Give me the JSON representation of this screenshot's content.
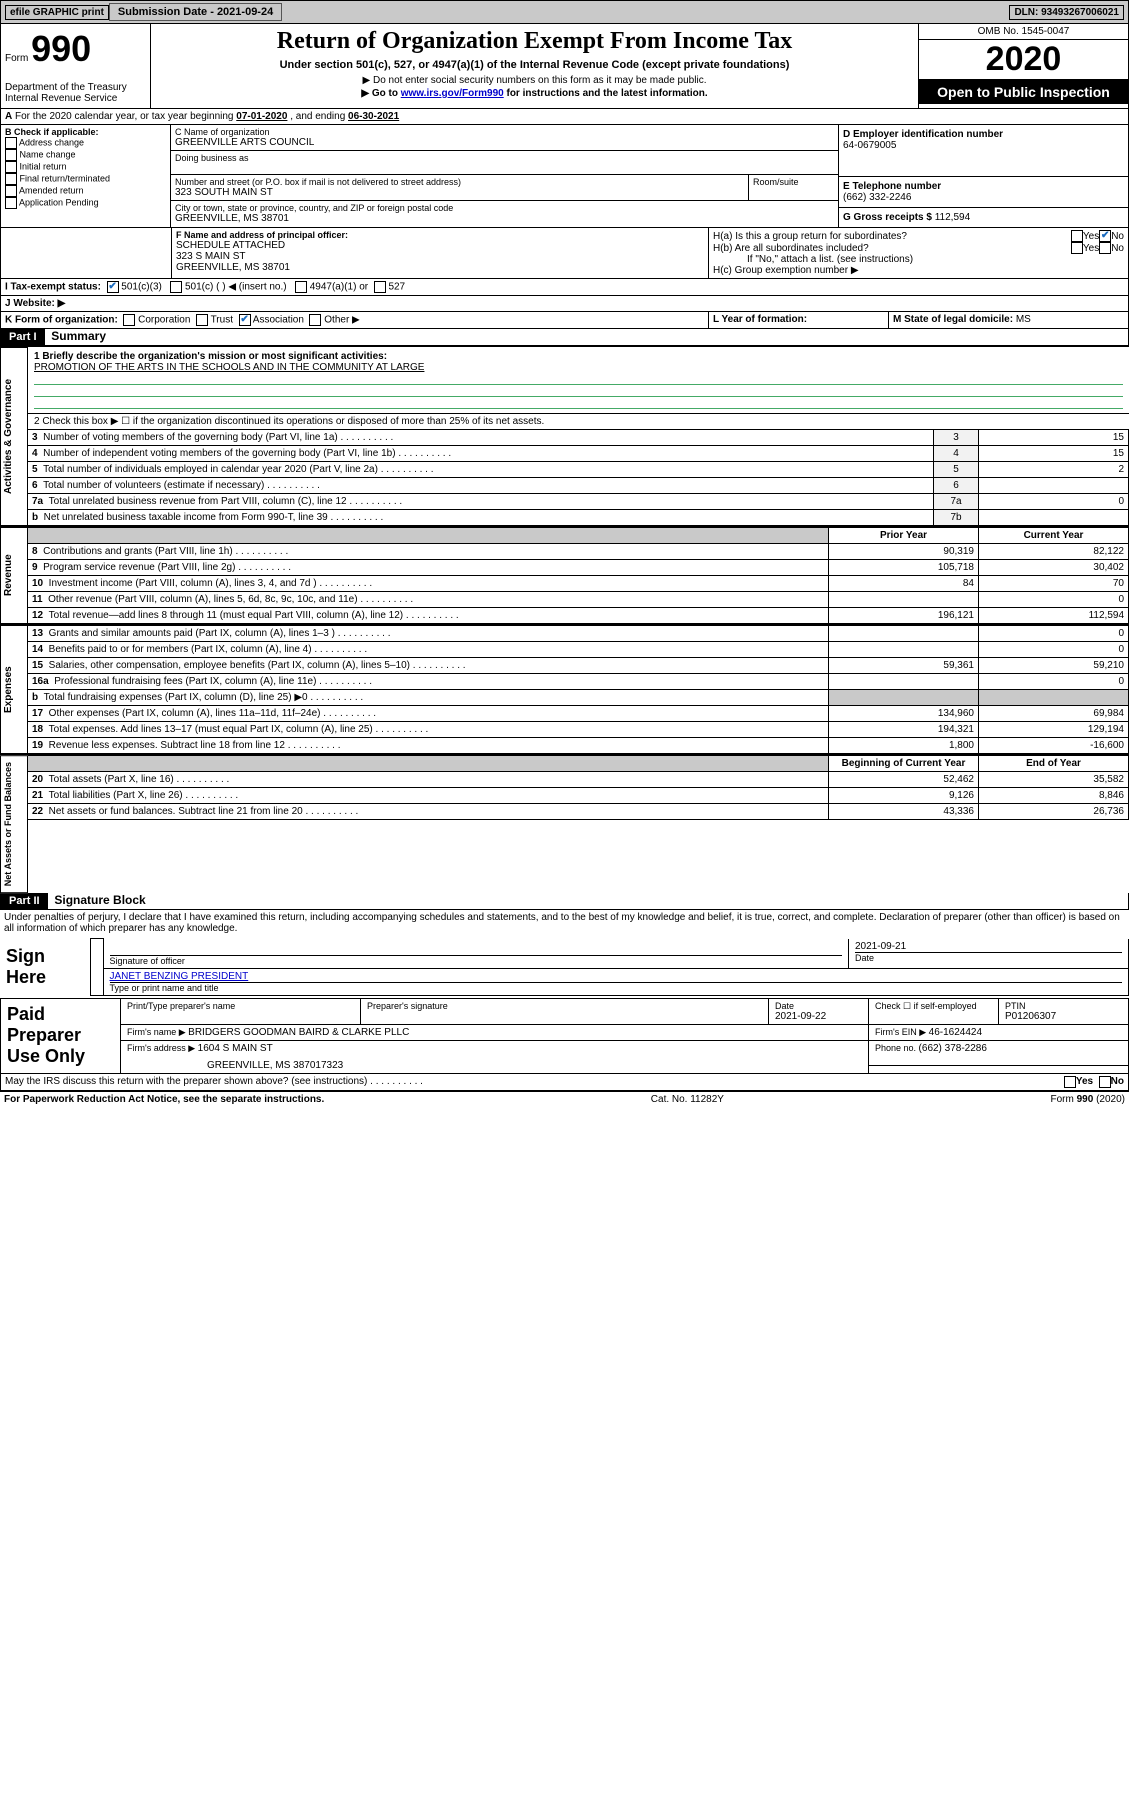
{
  "header": {
    "efile": "efile GRAPHIC print",
    "submission_label": "Submission Date - ",
    "submission_date": "2021-09-24",
    "dln_label": "DLN: ",
    "dln": "93493267006021"
  },
  "form_header": {
    "form_word": "Form",
    "form_number": "990",
    "dept": "Department of the Treasury",
    "irs": "Internal Revenue Service",
    "title": "Return of Organization Exempt From Income Tax",
    "subtitle": "Under section 501(c), 527, or 4947(a)(1) of the Internal Revenue Code (except private foundations)",
    "note1": "▶ Do not enter social security numbers on this form as it may be made public.",
    "note2_a": "▶ Go to ",
    "note2_link": "www.irs.gov/Form990",
    "note2_b": " for instructions and the latest information.",
    "omb": "OMB No. 1545-0047",
    "year": "2020",
    "open": "Open to Public Inspection"
  },
  "section_a": {
    "label_a": "A",
    "text": "For the 2020 calendar year, or tax year beginning ",
    "begin": "07-01-2020",
    "text2": " , and ending ",
    "end": "06-30-2021"
  },
  "section_b": {
    "label": "B Check if applicable:",
    "opts": [
      "Address change",
      "Name change",
      "Initial return",
      "Final return/terminated",
      "Amended return",
      "Application Pending"
    ]
  },
  "section_c": {
    "name_label": "C Name of organization",
    "name": "GREENVILLE ARTS COUNCIL",
    "dba_label": "Doing business as",
    "addr_label": "Number and street (or P.O. box if mail is not delivered to street address)",
    "addr": "323 SOUTH MAIN ST",
    "room_label": "Room/suite",
    "city_label": "City or town, state or province, country, and ZIP or foreign postal code",
    "city": "GREENVILLE, MS  38701"
  },
  "section_d": {
    "label": "D Employer identification number",
    "ein": "64-0679005"
  },
  "section_e": {
    "label": "E Telephone number",
    "phone": "(662) 332-2246"
  },
  "section_g": {
    "label": "G Gross receipts $ ",
    "amount": "112,594"
  },
  "section_f": {
    "label": "F Name and address of principal officer:",
    "l1": "SCHEDULE ATTACHED",
    "l2": "323 S MAIN ST",
    "l3": "GREENVILLE, MS  38701"
  },
  "section_h": {
    "h_a": "H(a)  Is this a group return for subordinates?",
    "h_b": "H(b)  Are all subordinates included?",
    "h_b_note": "If \"No,\" attach a list. (see instructions)",
    "h_c": "H(c)  Group exemption number ▶"
  },
  "section_i": {
    "label": "I  Tax-exempt status:",
    "opt1": "501(c)(3)",
    "opt2": "501(c) (  ) ◀ (insert no.)",
    "opt3": "4947(a)(1) or",
    "opt4": "527"
  },
  "section_j": {
    "label": "J  Website: ▶"
  },
  "section_k": {
    "label": "K Form of organization:",
    "opts": [
      "Corporation",
      "Trust",
      "Association",
      "Other ▶"
    ]
  },
  "section_l": {
    "label": "L Year of formation:"
  },
  "section_m": {
    "label": "M State of legal domicile: ",
    "val": "MS"
  },
  "part1": {
    "header": "Part I",
    "title": "Summary",
    "q1_label": "1  Briefly describe the organization's mission or most significant activities:",
    "q1_val": "PROMOTION OF THE ARTS IN THE SCHOOLS AND IN THE COMMUNITY AT LARGE",
    "q2": "2   Check this box ▶ ☐  if the organization discontinued its operations or disposed of more than 25% of its net assets.",
    "side_ag": "Activities & Governance",
    "side_rev": "Revenue",
    "side_exp": "Expenses",
    "side_na": "Net Assets or Fund Balances",
    "gov_rows": [
      {
        "n": "3",
        "label": "Number of voting members of the governing body (Part VI, line 1a)",
        "box": "3",
        "val": "15"
      },
      {
        "n": "4",
        "label": "Number of independent voting members of the governing body (Part VI, line 1b)",
        "box": "4",
        "val": "15"
      },
      {
        "n": "5",
        "label": "Total number of individuals employed in calendar year 2020 (Part V, line 2a)",
        "box": "5",
        "val": "2"
      },
      {
        "n": "6",
        "label": "Total number of volunteers (estimate if necessary)",
        "box": "6",
        "val": ""
      },
      {
        "n": "7a",
        "label": "Total unrelated business revenue from Part VIII, column (C), line 12",
        "box": "7a",
        "val": "0"
      },
      {
        "n": "b",
        "label": "Net unrelated business taxable income from Form 990-T, line 39",
        "box": "7b",
        "val": ""
      }
    ],
    "col_prior": "Prior Year",
    "col_curr": "Current Year",
    "col_begin": "Beginning of Current Year",
    "col_end": "End of Year",
    "rev_rows": [
      {
        "n": "8",
        "label": "Contributions and grants (Part VIII, line 1h)",
        "pv": "90,319",
        "cv": "82,122"
      },
      {
        "n": "9",
        "label": "Program service revenue (Part VIII, line 2g)",
        "pv": "105,718",
        "cv": "30,402"
      },
      {
        "n": "10",
        "label": "Investment income (Part VIII, column (A), lines 3, 4, and 7d )",
        "pv": "84",
        "cv": "70"
      },
      {
        "n": "11",
        "label": "Other revenue (Part VIII, column (A), lines 5, 6d, 8c, 9c, 10c, and 11e)",
        "pv": "",
        "cv": "0"
      },
      {
        "n": "12",
        "label": "Total revenue—add lines 8 through 11 (must equal Part VIII, column (A), line 12)",
        "pv": "196,121",
        "cv": "112,594"
      }
    ],
    "exp_rows": [
      {
        "n": "13",
        "label": "Grants and similar amounts paid (Part IX, column (A), lines 1–3 )",
        "pv": "",
        "cv": "0"
      },
      {
        "n": "14",
        "label": "Benefits paid to or for members (Part IX, column (A), line 4)",
        "pv": "",
        "cv": "0"
      },
      {
        "n": "15",
        "label": "Salaries, other compensation, employee benefits (Part IX, column (A), lines 5–10)",
        "pv": "59,361",
        "cv": "59,210"
      },
      {
        "n": "16a",
        "label": "Professional fundraising fees (Part IX, column (A), line 11e)",
        "pv": "",
        "cv": "0"
      },
      {
        "n": "b",
        "label": "Total fundraising expenses (Part IX, column (D), line 25) ▶0",
        "pv": "__shaded__",
        "cv": "__shaded__"
      },
      {
        "n": "17",
        "label": "Other expenses (Part IX, column (A), lines 11a–11d, 11f–24e)",
        "pv": "134,960",
        "cv": "69,984"
      },
      {
        "n": "18",
        "label": "Total expenses. Add lines 13–17 (must equal Part IX, column (A), line 25)",
        "pv": "194,321",
        "cv": "129,194"
      },
      {
        "n": "19",
        "label": "Revenue less expenses. Subtract line 18 from line 12",
        "pv": "1,800",
        "cv": "-16,600"
      }
    ],
    "na_rows": [
      {
        "n": "20",
        "label": "Total assets (Part X, line 16)",
        "pv": "52,462",
        "cv": "35,582"
      },
      {
        "n": "21",
        "label": "Total liabilities (Part X, line 26)",
        "pv": "9,126",
        "cv": "8,846"
      },
      {
        "n": "22",
        "label": "Net assets or fund balances. Subtract line 21 from line 20",
        "pv": "43,336",
        "cv": "26,736"
      }
    ]
  },
  "part2": {
    "header": "Part II",
    "title": "Signature Block",
    "penalty": "Under penalties of perjury, I declare that I have examined this return, including accompanying schedules and statements, and to the best of my knowledge and belief, it is true, correct, and complete. Declaration of preparer (other than officer) is based on all information of which preparer has any knowledge.",
    "sign_here": "Sign Here",
    "sig_officer": "Signature of officer",
    "sig_date": "2021-09-21",
    "date_label": "Date",
    "officer_name": "JANET BENZING  PRESIDENT",
    "type_label": "Type or print name and title",
    "paid": "Paid Preparer Use Only",
    "prep_name_label": "Print/Type preparer's name",
    "prep_sig_label": "Preparer's signature",
    "prep_date": "2021-09-22",
    "check_self": "Check ☐ if self-employed",
    "ptin_label": "PTIN",
    "ptin": "P01206307",
    "firm_name_label": "Firm's name   ▶ ",
    "firm_name": "BRIDGERS GOODMAN BAIRD & CLARKE PLLC",
    "firm_ein_label": "Firm's EIN ▶ ",
    "firm_ein": "46-1624424",
    "firm_addr_label": "Firm's address ▶ ",
    "firm_addr1": "1604 S MAIN ST",
    "firm_addr2": "GREENVILLE, MS  387017323",
    "firm_phone_label": "Phone no. ",
    "firm_phone": "(662) 378-2286",
    "discuss": "May the IRS discuss this return with the preparer shown above? (see instructions)",
    "yes": "Yes",
    "no": "No"
  },
  "footer": {
    "pra": "For Paperwork Reduction Act Notice, see the separate instructions.",
    "cat": "Cat. No. 11282Y",
    "form": "Form 990 (2020)"
  }
}
